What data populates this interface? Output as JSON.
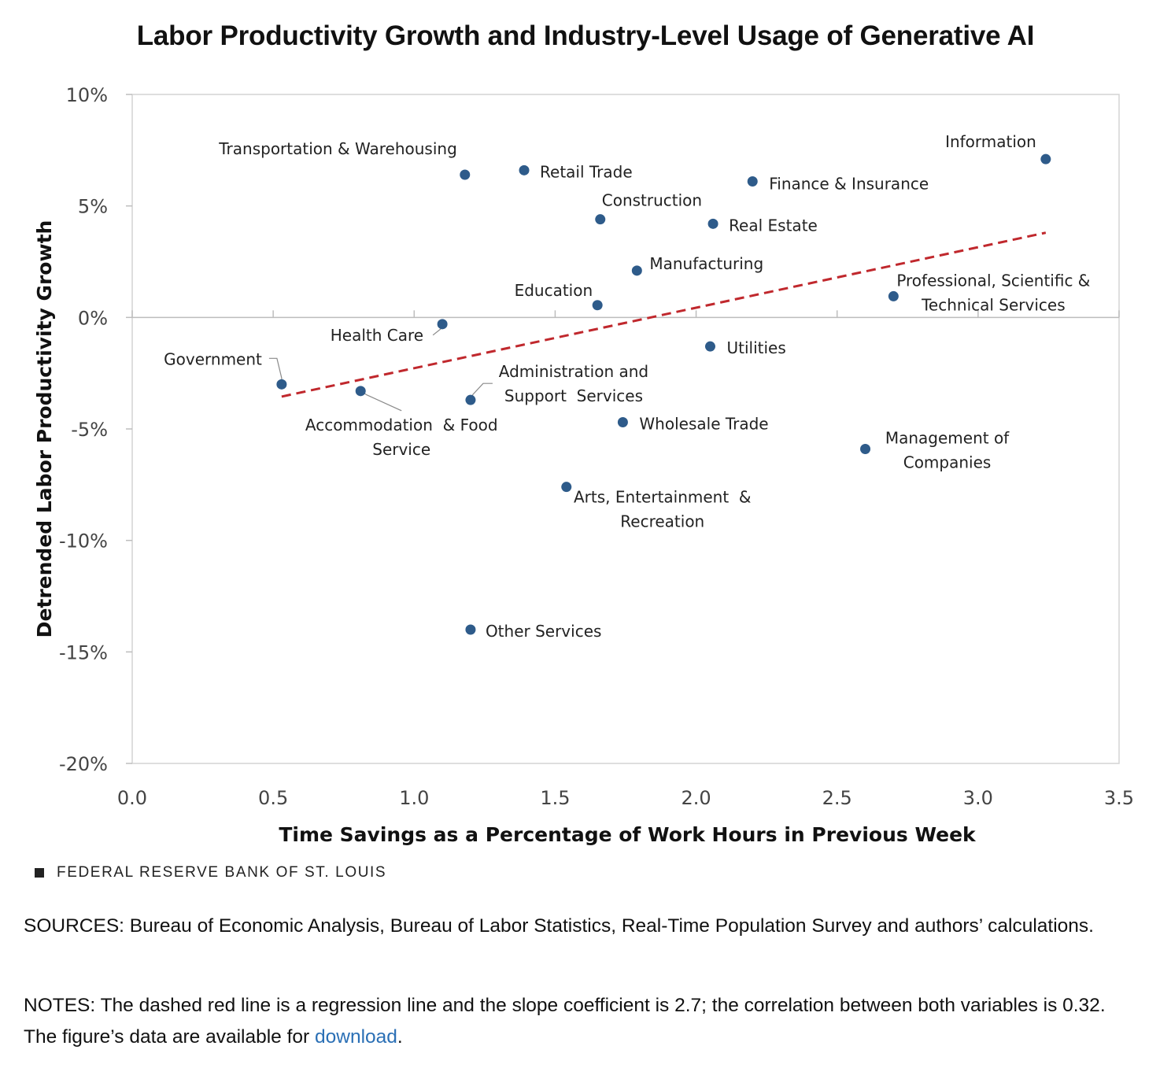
{
  "chart_data": {
    "type": "scatter",
    "title": "Labor Productivity Growth and Industry-Level Usage of Generative AI",
    "xlabel": "Time Savings as a Percentage of Work Hours in Previous Week",
    "ylabel": "Detrended Labor Productivity Growth",
    "xlim": [
      0.0,
      3.5
    ],
    "ylim": [
      -20,
      10
    ],
    "x_ticks": [
      "0.0",
      "0.5",
      "1.0",
      "1.5",
      "2.0",
      "2.5",
      "3.0",
      "3.5"
    ],
    "y_ticks": [
      "10%",
      "5%",
      "0%",
      "-5%",
      "-10%",
      "-15%",
      "-20%"
    ],
    "grid": false,
    "marker_color": "#2e5b8a",
    "regression_color": "#c0282d",
    "regression_line": {
      "x": [
        0.53,
        3.24
      ],
      "y": [
        -3.55,
        3.8
      ],
      "style": "dashed"
    },
    "points": [
      {
        "label": "Information",
        "lines": [
          "Information"
        ],
        "x": 3.24,
        "y": 7.1
      },
      {
        "label": "Transportation & Warehousing",
        "lines": [
          "Transportation & Warehousing"
        ],
        "x": 1.18,
        "y": 6.4
      },
      {
        "label": "Retail Trade",
        "lines": [
          "Retail Trade"
        ],
        "x": 1.39,
        "y": 6.6
      },
      {
        "label": "Finance & Insurance",
        "lines": [
          "Finance & Insurance"
        ],
        "x": 2.2,
        "y": 6.1
      },
      {
        "label": "Construction",
        "lines": [
          "Construction"
        ],
        "x": 1.66,
        "y": 4.4
      },
      {
        "label": "Real Estate",
        "lines": [
          "Real Estate"
        ],
        "x": 2.06,
        "y": 4.2
      },
      {
        "label": "Manufacturing",
        "lines": [
          "Manufacturing"
        ],
        "x": 1.79,
        "y": 2.1
      },
      {
        "label": "Education",
        "lines": [
          "Education"
        ],
        "x": 1.65,
        "y": 0.55
      },
      {
        "label": "Professional, Scientific & Technical Services",
        "lines": [
          "Professional, Scientific &",
          "Technical Services"
        ],
        "x": 2.7,
        "y": 0.95
      },
      {
        "label": "Health Care",
        "lines": [
          "Health Care"
        ],
        "x": 1.1,
        "y": -0.3
      },
      {
        "label": "Utilities",
        "lines": [
          "Utilities"
        ],
        "x": 2.05,
        "y": -1.3
      },
      {
        "label": "Government",
        "lines": [
          "Government"
        ],
        "x": 0.53,
        "y": -3.0
      },
      {
        "label": "Accommodation & Food Service",
        "lines": [
          "Accommodation  & Food",
          "Service"
        ],
        "x": 0.81,
        "y": -3.3
      },
      {
        "label": "Administration and Support Services",
        "lines": [
          "Administration and",
          "Support  Services"
        ],
        "x": 1.2,
        "y": -3.7
      },
      {
        "label": "Wholesale Trade",
        "lines": [
          "Wholesale Trade"
        ],
        "x": 1.74,
        "y": -4.7
      },
      {
        "label": "Management of Companies",
        "lines": [
          "Management of",
          "Companies"
        ],
        "x": 2.6,
        "y": -5.9
      },
      {
        "label": "Arts, Entertainment & Recreation",
        "lines": [
          "Arts, Entertainment  &",
          "Recreation"
        ],
        "x": 1.54,
        "y": -7.6
      },
      {
        "label": "Other Services",
        "lines": [
          "Other Services"
        ],
        "x": 1.2,
        "y": -14.0
      }
    ]
  },
  "footer": {
    "organization": "FEDERAL RESERVE BANK OF ST. LOUIS",
    "sources": "SOURCES: Bureau of Economic Analysis, Bureau of Labor Statistics, Real-Time Population Survey and authors’ calculations.",
    "notes_text": "NOTES: The dashed red line is a regression line and the slope coefficient is 2.7; the correlation between both variables is 0.32. The figure’s data are available for ",
    "download_label": "download",
    "notes_end": "."
  }
}
